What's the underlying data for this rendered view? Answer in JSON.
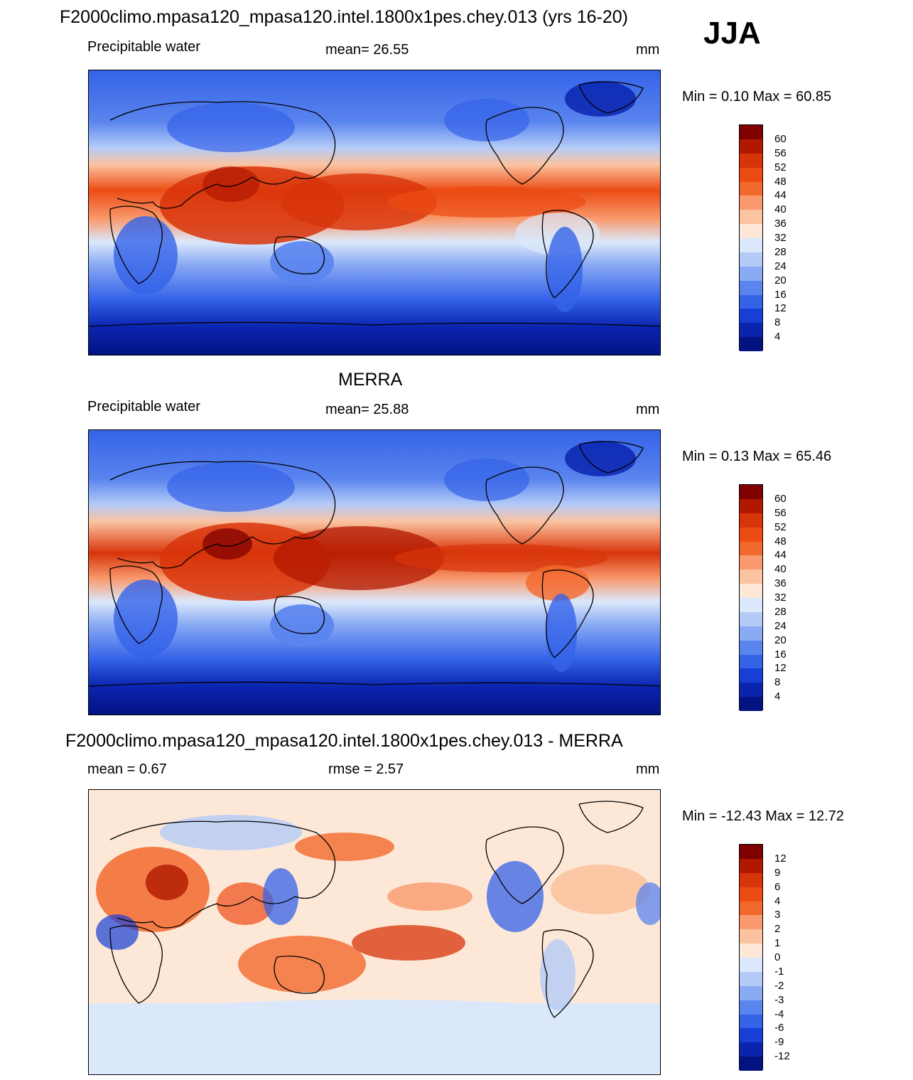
{
  "season": "JJA",
  "panels": [
    {
      "title": "F2000climo.mpasa120_mpasa120.intel.1800x1pes.chey.013 (yrs 16-20)",
      "left_label": "Precipitable water",
      "center_label": "mean=  26.55",
      "units": "mm",
      "range_text": "Min =   0.10 Max =  60.85",
      "colorbar_labels": [
        "60",
        "56",
        "52",
        "48",
        "44",
        "40",
        "36",
        "32",
        "28",
        "24",
        "20",
        "16",
        "12",
        "8",
        "4"
      ],
      "colors": [
        "#7f0000",
        "#b01800",
        "#d8340a",
        "#ec4c14",
        "#f2692e",
        "#f99a6e",
        "#fbc3a0",
        "#fde8d8",
        "#dbe8fb",
        "#b4cbf8",
        "#8aaaf4",
        "#5a84ee",
        "#3463e8",
        "#173fd6",
        "#0a24b0",
        "#021280"
      ]
    },
    {
      "title": "MERRA",
      "left_label": "Precipitable water",
      "center_label": "mean=  25.88",
      "units": "mm",
      "range_text": "Min =   0.13 Max =  65.46",
      "colorbar_labels": [
        "60",
        "56",
        "52",
        "48",
        "44",
        "40",
        "36",
        "32",
        "28",
        "24",
        "20",
        "16",
        "12",
        "8",
        "4"
      ],
      "colors": [
        "#7f0000",
        "#b01800",
        "#d8340a",
        "#ec4c14",
        "#f2692e",
        "#f99a6e",
        "#fbc3a0",
        "#fde8d8",
        "#dbe8fb",
        "#b4cbf8",
        "#8aaaf4",
        "#5a84ee",
        "#3463e8",
        "#173fd6",
        "#0a24b0",
        "#021280"
      ]
    },
    {
      "title": "F2000climo.mpasa120_mpasa120.intel.1800x1pes.chey.013 - MERRA",
      "left_label": "mean =   0.67",
      "center_label": "rmse =   2.57",
      "units": "mm",
      "range_text": "Min = -12.43 Max =  12.72",
      "colorbar_labels": [
        "12",
        "9",
        "6",
        "4",
        "3",
        "2",
        "1",
        "0",
        "-1",
        "-2",
        "-3",
        "-4",
        "-6",
        "-9",
        "-12"
      ],
      "colors": [
        "#7f0000",
        "#b01800",
        "#d8340a",
        "#ec4c14",
        "#f2692e",
        "#f99a6e",
        "#fbc3a0",
        "#fde8d8",
        "#dbe8fb",
        "#b4cbf8",
        "#8aaaf4",
        "#5a84ee",
        "#3463e8",
        "#173fd6",
        "#0a24b0",
        "#021280"
      ]
    }
  ]
}
